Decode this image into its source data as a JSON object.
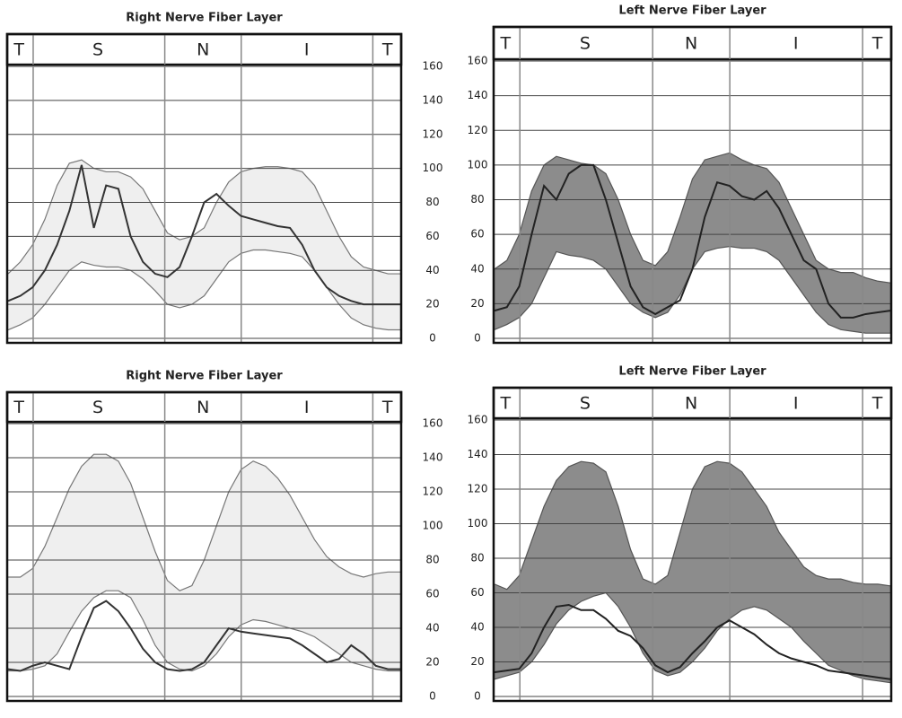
{
  "chart_data": [
    {
      "type": "line",
      "title": "Right Nerve Fiber Layer",
      "sectors": [
        "T",
        "S",
        "N",
        "I",
        "T"
      ],
      "ylim": [
        0,
        160
      ],
      "yticks": [
        0,
        20,
        40,
        60,
        80,
        100,
        120,
        140,
        160
      ],
      "grid": true,
      "yaxis_side": "right",
      "band": {
        "color": "#efefef",
        "edge_color": "#777777",
        "lower": [
          5,
          8,
          12,
          20,
          30,
          40,
          45,
          43,
          42,
          42,
          40,
          35,
          28,
          20,
          18,
          20,
          25,
          35,
          45,
          50,
          52,
          52,
          51,
          50,
          48,
          40,
          30,
          20,
          12,
          8,
          6,
          5,
          5
        ],
        "upper": [
          38,
          45,
          55,
          70,
          90,
          103,
          105,
          100,
          98,
          98,
          95,
          88,
          75,
          62,
          58,
          60,
          65,
          80,
          92,
          98,
          100,
          101,
          101,
          100,
          98,
          90,
          75,
          60,
          48,
          42,
          40,
          38,
          38
        ]
      },
      "series": [
        {
          "color": "#333333",
          "values": [
            22,
            25,
            30,
            40,
            55,
            75,
            102,
            65,
            90,
            88,
            60,
            45,
            38,
            36,
            42,
            60,
            80,
            85,
            78,
            72,
            70,
            68,
            66,
            65,
            55,
            40,
            30,
            25,
            22,
            20,
            20,
            20,
            20
          ]
        }
      ]
    },
    {
      "type": "line",
      "title": "Left Nerve Fiber Layer",
      "sectors": [
        "T",
        "S",
        "N",
        "I",
        "T"
      ],
      "ylim": [
        0,
        160
      ],
      "yticks": [
        0,
        20,
        40,
        60,
        80,
        100,
        120,
        140,
        160
      ],
      "grid": true,
      "yaxis_side": "left",
      "band": {
        "color": "#8c8c8c",
        "edge_color": "#555555",
        "lower": [
          5,
          8,
          12,
          20,
          35,
          50,
          48,
          47,
          45,
          40,
          30,
          20,
          15,
          12,
          15,
          25,
          40,
          50,
          52,
          53,
          52,
          52,
          50,
          45,
          35,
          25,
          15,
          8,
          5,
          4,
          3,
          3,
          3
        ],
        "upper": [
          40,
          45,
          60,
          85,
          100,
          105,
          103,
          101,
          100,
          95,
          80,
          60,
          45,
          42,
          50,
          70,
          92,
          103,
          105,
          107,
          103,
          100,
          98,
          90,
          75,
          60,
          45,
          40,
          38,
          38,
          35,
          33,
          32
        ]
      },
      "series": [
        {
          "color": "#222222",
          "values": [
            16,
            18,
            30,
            60,
            88,
            80,
            95,
            100,
            100,
            80,
            55,
            30,
            18,
            14,
            18,
            22,
            40,
            70,
            90,
            88,
            82,
            80,
            85,
            75,
            60,
            45,
            40,
            20,
            12,
            12,
            14,
            15,
            16
          ]
        }
      ]
    },
    {
      "type": "line",
      "title": "Right Nerve Fiber Layer",
      "sectors": [
        "T",
        "S",
        "N",
        "I",
        "T"
      ],
      "ylim": [
        0,
        160
      ],
      "yticks": [
        0,
        20,
        40,
        60,
        80,
        100,
        120,
        140,
        160
      ],
      "grid": true,
      "yaxis_side": "right",
      "band": {
        "color": "#efefef",
        "edge_color": "#777777",
        "lower": [
          15,
          15,
          16,
          18,
          25,
          38,
          50,
          58,
          62,
          62,
          58,
          45,
          30,
          20,
          16,
          15,
          18,
          25,
          35,
          42,
          45,
          44,
          42,
          40,
          38,
          35,
          30,
          25,
          20,
          18,
          16,
          15,
          15
        ],
        "upper": [
          70,
          70,
          75,
          88,
          105,
          122,
          135,
          142,
          142,
          138,
          125,
          105,
          85,
          68,
          62,
          65,
          80,
          100,
          120,
          133,
          138,
          135,
          128,
          118,
          105,
          92,
          82,
          76,
          72,
          70,
          72,
          73,
          73
        ]
      },
      "series": [
        {
          "color": "#333333",
          "values": [
            16,
            15,
            18,
            20,
            18,
            16,
            35,
            52,
            56,
            50,
            40,
            28,
            20,
            16,
            15,
            16,
            20,
            30,
            40,
            38,
            37,
            36,
            35,
            34,
            30,
            25,
            20,
            22,
            30,
            25,
            18,
            16,
            16
          ]
        }
      ]
    },
    {
      "type": "line",
      "title": "Left Nerve Fiber Layer",
      "sectors": [
        "T",
        "S",
        "N",
        "I",
        "T"
      ],
      "ylim": [
        0,
        160
      ],
      "yticks": [
        0,
        20,
        40,
        60,
        80,
        100,
        120,
        140,
        160
      ],
      "grid": true,
      "yaxis_side": "left",
      "band": {
        "color": "#8c8c8c",
        "edge_color": "#555555",
        "lower": [
          10,
          12,
          14,
          20,
          30,
          42,
          50,
          55,
          58,
          60,
          52,
          40,
          25,
          15,
          12,
          14,
          20,
          28,
          38,
          45,
          50,
          52,
          50,
          45,
          40,
          32,
          25,
          18,
          15,
          12,
          10,
          9,
          8
        ],
        "upper": [
          65,
          62,
          70,
          90,
          110,
          125,
          133,
          136,
          135,
          130,
          110,
          85,
          68,
          65,
          70,
          95,
          120,
          133,
          136,
          135,
          130,
          120,
          110,
          95,
          85,
          75,
          70,
          68,
          68,
          66,
          65,
          65,
          64
        ]
      },
      "series": [
        {
          "color": "#222222",
          "values": [
            14,
            15,
            16,
            25,
            40,
            52,
            53,
            50,
            50,
            45,
            38,
            35,
            28,
            18,
            14,
            17,
            25,
            32,
            40,
            44,
            40,
            36,
            30,
            25,
            22,
            20,
            18,
            15,
            14,
            13,
            12,
            11,
            10
          ]
        }
      ]
    }
  ]
}
